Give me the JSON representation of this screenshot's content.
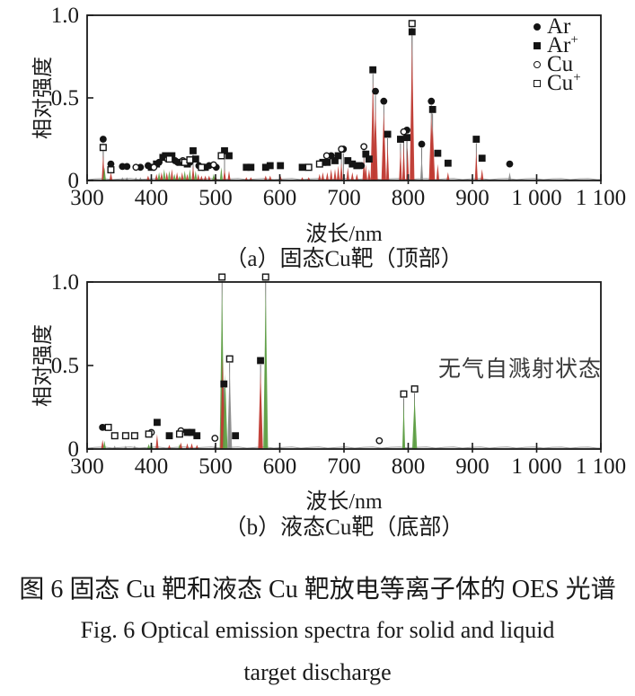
{
  "figure": {
    "caption_zh": "图 6  固态 Cu 靶和液态 Cu 靶放电等离子体的 OES 光谱",
    "caption_en_line1": "Fig. 6  Optical emission spectra for solid and liquid",
    "caption_en_line2": "target discharge"
  },
  "colors": {
    "peak_red": "#c13b33",
    "peak_green": "#5fa045",
    "peak_gray": "#8c8c8c",
    "marker_black": "#141414",
    "axis": "#1a1a1a",
    "baseline": "#9b9b9b",
    "connector": "#5a5a5a"
  },
  "legend": [
    {
      "base": "Ar",
      "sup": "",
      "marker": "filled-circle"
    },
    {
      "base": "Ar",
      "sup": "+",
      "marker": "filled-square"
    },
    {
      "base": "Cu",
      "sup": "",
      "marker": "open-circle"
    },
    {
      "base": "Cu",
      "sup": "+",
      "marker": "open-square"
    }
  ],
  "chart_data": [
    {
      "id": "a",
      "type": "scatter",
      "subtype": "emission-line-spectrum",
      "title": "（a）固态Cu靶（顶部）",
      "xlabel": "波长/nm",
      "ylabel": "相对强度",
      "xlim": [
        300,
        1100
      ],
      "ylim": [
        0,
        1.0
      ],
      "xticks": [
        300,
        400,
        500,
        600,
        700,
        800,
        900,
        1000,
        1100
      ],
      "xtick_labels": [
        "300",
        "400",
        "500",
        "600",
        "700",
        "800",
        "900",
        "1 000",
        "1 100"
      ],
      "yticks": [
        0,
        0.5,
        1.0
      ],
      "ytick_labels": [
        "0",
        "0.5",
        "1.0"
      ],
      "grid": false,
      "legend_position": "top-right-inside",
      "series": [
        {
          "name": "Ar",
          "marker": "filled-circle",
          "points": [
            [
              325,
              0.22
            ],
            [
              337,
              0.07
            ],
            [
              355,
              0.055
            ],
            [
              362,
              0.055
            ],
            [
              383,
              0.05
            ],
            [
              395,
              0.06
            ],
            [
              412,
              0.08
            ],
            [
              437,
              0.09
            ],
            [
              441,
              0.08
            ],
            [
              460,
              0.08
            ],
            [
              474,
              0.06
            ],
            [
              490,
              0.06
            ],
            [
              501,
              0.05
            ],
            [
              680,
              0.12
            ],
            [
              699,
              0.16
            ],
            [
              727,
              0.06
            ],
            [
              749,
              0.51
            ],
            [
              762,
              0.45
            ],
            [
              798,
              0.275
            ],
            [
              821,
              0.19
            ],
            [
              836,
              0.45
            ],
            [
              958,
              0.07
            ]
          ]
        },
        {
          "name": "Ar+",
          "marker": "filled-square",
          "points": [
            [
              400,
              0.05
            ],
            [
              408,
              0.07
            ],
            [
              418,
              0.11
            ],
            [
              422,
              0.12
            ],
            [
              432,
              0.12
            ],
            [
              445,
              0.08
            ],
            [
              456,
              0.07
            ],
            [
              465,
              0.15
            ],
            [
              469,
              0.1
            ],
            [
              484,
              0.05
            ],
            [
              514,
              0.15
            ],
            [
              521,
              0.12
            ],
            [
              548,
              0.05
            ],
            [
              555,
              0.05
            ],
            [
              578,
              0.05
            ],
            [
              585,
              0.06
            ],
            [
              601,
              0.06
            ],
            [
              635,
              0.05
            ],
            [
              667,
              0.08
            ],
            [
              674,
              0.08
            ],
            [
              686,
              0.09
            ],
            [
              691,
              0.12
            ],
            [
              706,
              0.09
            ],
            [
              713,
              0.07
            ],
            [
              720,
              0.06
            ],
            [
              734,
              0.13
            ],
            [
              739,
              0.1
            ],
            [
              745,
              0.64
            ],
            [
              768,
              0.25
            ],
            [
              788,
              0.22
            ],
            [
              798,
              0.23
            ],
            [
              806,
              0.87
            ],
            [
              838,
              0.4
            ],
            [
              846,
              0.135
            ],
            [
              862,
              0.075
            ],
            [
              906,
              0.22
            ],
            [
              915,
              0.105
            ]
          ]
        },
        {
          "name": "Cu",
          "marker": "open-circle",
          "points": [
            [
              376,
              0.05
            ],
            [
              404,
              0.05
            ],
            [
              425,
              0.1
            ],
            [
              449,
              0.09
            ],
            [
              497,
              0.065
            ],
            [
              673,
              0.12
            ],
            [
              696,
              0.16
            ],
            [
              731,
              0.175
            ],
            [
              793,
              0.265
            ]
          ]
        },
        {
          "name": "Cu+",
          "marker": "open-square",
          "points": [
            [
              325,
              0.17
            ],
            [
              337,
              0.035
            ],
            [
              428,
              0.1
            ],
            [
              452,
              0.08
            ],
            [
              460,
              0.095
            ],
            [
              478,
              0.05
            ],
            [
              509,
              0.12
            ],
            [
              645,
              0.05
            ],
            [
              662,
              0.07
            ],
            [
              806,
              0.92
            ]
          ]
        }
      ],
      "peaks": [
        [
          325,
          0.16,
          "r"
        ],
        [
          327,
          0.08,
          "g"
        ],
        [
          337,
          0.05,
          "r"
        ],
        [
          355,
          0.02,
          "k"
        ],
        [
          362,
          0.02,
          "k"
        ],
        [
          376,
          0.02,
          "k"
        ],
        [
          383,
          0.02,
          "k"
        ],
        [
          395,
          0.03,
          "r"
        ],
        [
          400,
          0.02,
          "k"
        ],
        [
          408,
          0.04,
          "r"
        ],
        [
          412,
          0.05,
          "g"
        ],
        [
          416,
          0.05,
          "r"
        ],
        [
          420,
          0.07,
          "g"
        ],
        [
          424,
          0.05,
          "r"
        ],
        [
          428,
          0.06,
          "g"
        ],
        [
          432,
          0.07,
          "r"
        ],
        [
          436,
          0.04,
          "g"
        ],
        [
          440,
          0.05,
          "r"
        ],
        [
          444,
          0.03,
          "g"
        ],
        [
          448,
          0.05,
          "r"
        ],
        [
          452,
          0.06,
          "g"
        ],
        [
          456,
          0.04,
          "r"
        ],
        [
          460,
          0.07,
          "g"
        ],
        [
          465,
          0.09,
          "r"
        ],
        [
          469,
          0.06,
          "g"
        ],
        [
          473,
          0.04,
          "r"
        ],
        [
          478,
          0.03,
          "r"
        ],
        [
          484,
          0.03,
          "r"
        ],
        [
          490,
          0.03,
          "r"
        ],
        [
          497,
          0.04,
          "g"
        ],
        [
          500,
          0.03,
          "r"
        ],
        [
          509,
          0.08,
          "g"
        ],
        [
          514,
          0.07,
          "r"
        ],
        [
          521,
          0.06,
          "r"
        ],
        [
          548,
          0.02,
          "r"
        ],
        [
          555,
          0.02,
          "r"
        ],
        [
          578,
          0.03,
          "r"
        ],
        [
          585,
          0.03,
          "r"
        ],
        [
          601,
          0.03,
          "r"
        ],
        [
          635,
          0.02,
          "r"
        ],
        [
          645,
          0.02,
          "r"
        ],
        [
          662,
          0.04,
          "r"
        ],
        [
          667,
          0.05,
          "r"
        ],
        [
          674,
          0.05,
          "r"
        ],
        [
          680,
          0.07,
          "r"
        ],
        [
          686,
          0.07,
          "r"
        ],
        [
          691,
          0.09,
          "r"
        ],
        [
          696,
          0.11,
          "r"
        ],
        [
          706,
          0.08,
          "r"
        ],
        [
          713,
          0.05,
          "r"
        ],
        [
          720,
          0.04,
          "r"
        ],
        [
          731,
          0.14,
          "r"
        ],
        [
          734,
          0.1,
          "r"
        ],
        [
          739,
          0.07,
          "r"
        ],
        [
          745,
          0.6,
          "r"
        ],
        [
          749,
          0.46,
          "r"
        ],
        [
          762,
          0.42,
          "r"
        ],
        [
          768,
          0.22,
          "r"
        ],
        [
          788,
          0.19,
          "r"
        ],
        [
          793,
          0.22,
          "r"
        ],
        [
          799,
          0.2,
          "r"
        ],
        [
          806,
          0.85,
          "r"
        ],
        [
          821,
          0.15,
          "k"
        ],
        [
          836,
          0.4,
          "r"
        ],
        [
          838,
          0.34,
          "r"
        ],
        [
          846,
          0.1,
          "r"
        ],
        [
          862,
          0.05,
          "r"
        ],
        [
          906,
          0.18,
          "r"
        ],
        [
          915,
          0.07,
          "r"
        ],
        [
          958,
          0.05,
          "k"
        ]
      ]
    },
    {
      "id": "b",
      "type": "scatter",
      "subtype": "emission-line-spectrum",
      "title": "（b）液态Cu靶（底部）",
      "xlabel": "波长/nm",
      "ylabel": "相对强度",
      "annotation": "无气自溅射状态",
      "xlim": [
        300,
        1100
      ],
      "ylim": [
        0,
        1.0
      ],
      "xticks": [
        300,
        400,
        500,
        600,
        700,
        800,
        900,
        1000,
        1100
      ],
      "xtick_labels": [
        "300",
        "400",
        "500",
        "600",
        "700",
        "800",
        "900",
        "1 000",
        "1 100"
      ],
      "yticks": [
        0,
        0.5,
        1.0
      ],
      "ytick_labels": [
        "0",
        "0.5",
        "1.0"
      ],
      "grid": false,
      "series": [
        {
          "name": "Ar",
          "marker": "filled-circle",
          "points": [
            [
              324,
              0.1
            ]
          ]
        },
        {
          "name": "Ar+",
          "marker": "filled-square",
          "points": [
            [
              409,
              0.13
            ],
            [
              428,
              0.05
            ],
            [
              456,
              0.07
            ],
            [
              463,
              0.07
            ],
            [
              471,
              0.05
            ],
            [
              513,
              0.36
            ],
            [
              531,
              0.05
            ],
            [
              570,
              0.5
            ]
          ]
        },
        {
          "name": "Cu",
          "marker": "open-circle",
          "points": [
            [
              400,
              0.07
            ],
            [
              446,
              0.08
            ],
            [
              499,
              0.035
            ],
            [
              755,
              0.02
            ]
          ]
        },
        {
          "name": "Cu+",
          "marker": "open-square",
          "points": [
            [
              333,
              0.1
            ],
            [
              343,
              0.05
            ],
            [
              360,
              0.05
            ],
            [
              374,
              0.05
            ],
            [
              396,
              0.06
            ],
            [
              444,
              0.06
            ],
            [
              510,
              1.0
            ],
            [
              522,
              0.51
            ],
            [
              578,
              1.0
            ],
            [
              793,
              0.3
            ],
            [
              810,
              0.33
            ]
          ]
        }
      ],
      "peaks": [
        [
          324,
          0.055,
          "r"
        ],
        [
          327,
          0.05,
          "g"
        ],
        [
          343,
          0.02,
          "k"
        ],
        [
          360,
          0.02,
          "k"
        ],
        [
          374,
          0.02,
          "k"
        ],
        [
          396,
          0.03,
          "g"
        ],
        [
          400,
          0.04,
          "g"
        ],
        [
          409,
          0.09,
          "r"
        ],
        [
          428,
          0.025,
          "r"
        ],
        [
          444,
          0.03,
          "g"
        ],
        [
          446,
          0.04,
          "r"
        ],
        [
          456,
          0.035,
          "r"
        ],
        [
          463,
          0.035,
          "r"
        ],
        [
          471,
          0.025,
          "r"
        ],
        [
          499,
          0.025,
          "k"
        ],
        [
          510,
          0.98,
          "g"
        ],
        [
          511,
          0.55,
          "r"
        ],
        [
          515,
          0.45,
          "g"
        ],
        [
          522,
          0.48,
          "k"
        ],
        [
          570,
          0.47,
          "r"
        ],
        [
          578,
          0.97,
          "g"
        ],
        [
          793,
          0.28,
          "g"
        ],
        [
          810,
          0.31,
          "g"
        ]
      ]
    }
  ]
}
